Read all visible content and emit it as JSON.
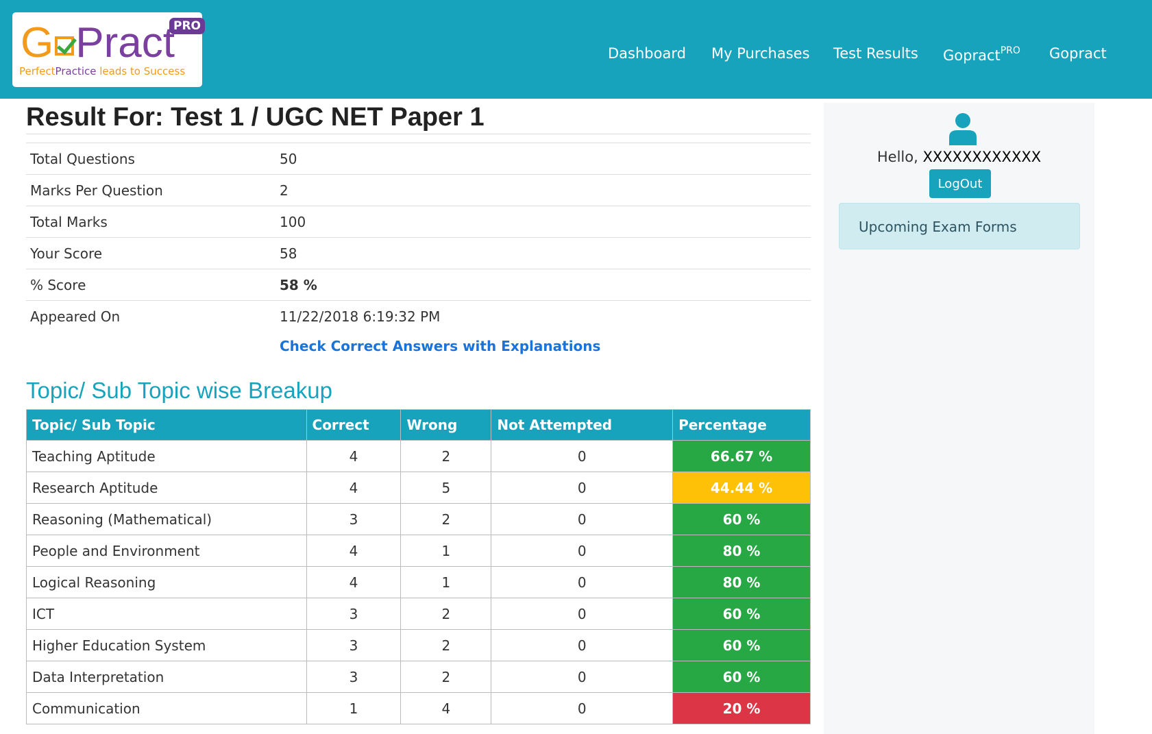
{
  "header": {
    "logo": {
      "brand_prefix": "G",
      "brand_suffix": "Pract",
      "pro_badge": "PRO",
      "tagline_a": "Perfect",
      "tagline_b": "Practice",
      "tagline_c": " leads to Success"
    },
    "nav": [
      {
        "label": "Dashboard"
      },
      {
        "label": "My Purchases"
      },
      {
        "label": "Test Results"
      },
      {
        "label": "Gopract",
        "sup": "PRO"
      },
      {
        "label": "Gopract"
      }
    ]
  },
  "result": {
    "title": "Result For: Test 1 / UGC NET Paper 1",
    "rows": [
      {
        "label": "Total Questions",
        "value": "50"
      },
      {
        "label": "Marks Per Question",
        "value": "2"
      },
      {
        "label": "Total Marks",
        "value": "100"
      },
      {
        "label": "Your Score",
        "value": "58"
      },
      {
        "label": "% Score",
        "value": "58 %"
      },
      {
        "label": "Appeared On",
        "value": "11/22/2018 6:19:32 PM"
      }
    ],
    "check_link": "Check Correct Answers with Explanations"
  },
  "breakup": {
    "title": "Topic/ Sub Topic wise Breakup",
    "headers": [
      "Topic/ Sub Topic",
      "Correct",
      "Wrong",
      "Not Attempted",
      "Percentage"
    ],
    "rows": [
      {
        "topic": "Teaching Aptitude",
        "correct": "4",
        "wrong": "2",
        "not_attempted": "0",
        "percentage": "66.67 %",
        "status": "good"
      },
      {
        "topic": "Research Aptitude",
        "correct": "4",
        "wrong": "5",
        "not_attempted": "0",
        "percentage": "44.44 %",
        "status": "warn"
      },
      {
        "topic": "Reasoning (Mathematical)",
        "correct": "3",
        "wrong": "2",
        "not_attempted": "0",
        "percentage": "60 %",
        "status": "good"
      },
      {
        "topic": "People and Environment",
        "correct": "4",
        "wrong": "1",
        "not_attempted": "0",
        "percentage": "80 %",
        "status": "good"
      },
      {
        "topic": "Logical Reasoning",
        "correct": "4",
        "wrong": "1",
        "not_attempted": "0",
        "percentage": "80 %",
        "status": "good"
      },
      {
        "topic": "ICT",
        "correct": "3",
        "wrong": "2",
        "not_attempted": "0",
        "percentage": "60 %",
        "status": "good"
      },
      {
        "topic": "Higher Education System",
        "correct": "3",
        "wrong": "2",
        "not_attempted": "0",
        "percentage": "60 %",
        "status": "good"
      },
      {
        "topic": "Data Interpretation",
        "correct": "3",
        "wrong": "2",
        "not_attempted": "0",
        "percentage": "60 %",
        "status": "good"
      },
      {
        "topic": "Communication",
        "correct": "1",
        "wrong": "4",
        "not_attempted": "0",
        "percentage": "20 %",
        "status": "bad"
      }
    ]
  },
  "sidebar": {
    "icon": "user-icon",
    "hello_label": "Hello, ",
    "user_name": "XXXXXXXXXXXX",
    "logout_label": "LogOut",
    "upcoming_label": "Upcoming Exam Forms"
  },
  "colors": {
    "primary": "#18a3bd",
    "good": "#28a745",
    "warn": "#ffc107",
    "bad": "#dc3545",
    "link": "#1a73d9"
  }
}
